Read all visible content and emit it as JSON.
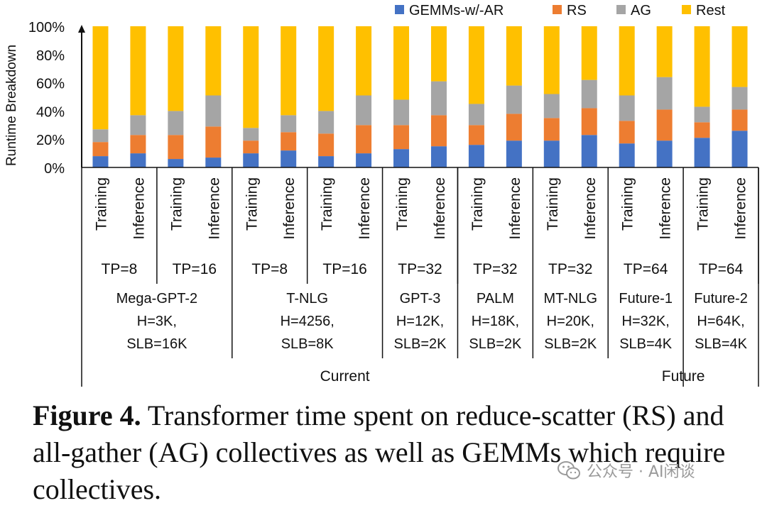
{
  "chart_data": {
    "type": "bar",
    "stacked": true,
    "ylabel": "Runtime Breakdown",
    "yticks": [
      "0%",
      "20%",
      "40%",
      "60%",
      "80%",
      "100%"
    ],
    "ylim": [
      0,
      100
    ],
    "legend_position": "top",
    "colors": {
      "GEMMs-w/-AR": "#4472C4",
      "RS": "#ED7D31",
      "AG": "#A5A5A5",
      "Rest": "#FFC000"
    },
    "series": [
      {
        "name": "GEMMs-w/-AR",
        "values": [
          8,
          10,
          6,
          7,
          10,
          12,
          8,
          10,
          13,
          15,
          16,
          19,
          19,
          23,
          17,
          19,
          21,
          26
        ]
      },
      {
        "name": "RS",
        "values": [
          10,
          13,
          17,
          22,
          9,
          13,
          16,
          20,
          17,
          22,
          14,
          19,
          16,
          19,
          16,
          22,
          11,
          15
        ]
      },
      {
        "name": "AG",
        "values": [
          9,
          14,
          17,
          22,
          9,
          12,
          16,
          21,
          18,
          24,
          15,
          20,
          17,
          20,
          18,
          23,
          11,
          16
        ]
      },
      {
        "name": "Rest",
        "values": [
          73,
          63,
          60,
          49,
          72,
          63,
          60,
          49,
          52,
          39,
          55,
          42,
          48,
          38,
          49,
          36,
          57,
          43
        ]
      }
    ],
    "categories": [
      "Training",
      "Inference",
      "Training",
      "Inference",
      "Training",
      "Inference",
      "Training",
      "Inference",
      "Training",
      "Inference",
      "Training",
      "Inference",
      "Training",
      "Inference",
      "Training",
      "Inference",
      "Training",
      "Inference"
    ],
    "tp_groups": [
      "TP=8",
      "TP=16",
      "TP=8",
      "TP=16",
      "TP=32",
      "TP=32",
      "TP=32",
      "TP=64",
      "TP=64"
    ],
    "models": [
      {
        "lines": [
          "Mega-GPT-2",
          "H=3K,",
          "SLB=16K"
        ]
      },
      {
        "lines": [
          "T-NLG",
          "H=4256,",
          "SLB=8K"
        ]
      },
      {
        "lines": [
          "GPT-3",
          "H=12K,",
          "SLB=2K"
        ]
      },
      {
        "lines": [
          "PALM",
          "H=18K,",
          "SLB=2K"
        ]
      },
      {
        "lines": [
          "MT-NLG",
          "H=20K,",
          "SLB=2K"
        ]
      },
      {
        "lines": [
          "Future-1",
          "H=32K,",
          "SLB=4K"
        ]
      },
      {
        "lines": [
          "Future-2",
          "H=64K,",
          "SLB=4K"
        ]
      }
    ],
    "eras": [
      "Current",
      "Future"
    ]
  },
  "caption": {
    "label": "Figure 4.",
    "text": " Transformer time spent on reduce-scatter (RS) and all-gather (AG) collectives as well as GEMMs which require collectives."
  },
  "watermark": {
    "text": "公众号 · AI闲谈"
  }
}
